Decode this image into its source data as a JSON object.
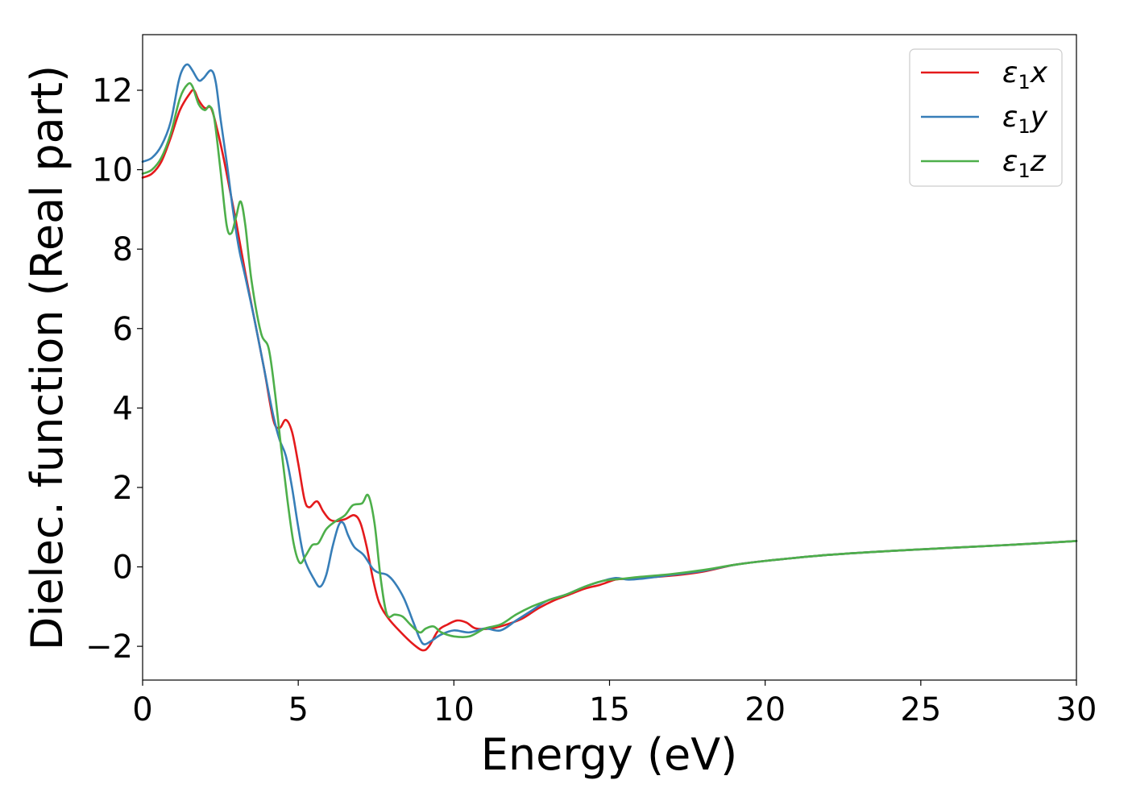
{
  "chart_data": {
    "type": "line",
    "title": "",
    "xlabel": "Energy (eV)",
    "ylabel": "Dielec. function (Real part)",
    "xlim": [
      0,
      30
    ],
    "ylim": [
      -2.85,
      13.4
    ],
    "xticks": [
      0,
      5,
      10,
      15,
      20,
      25,
      30
    ],
    "xtick_labels": [
      "0",
      "5",
      "10",
      "15",
      "20",
      "25",
      "30"
    ],
    "yticks": [
      -2,
      0,
      2,
      4,
      6,
      8,
      10,
      12
    ],
    "ytick_labels": [
      "−2",
      "0",
      "2",
      "4",
      "6",
      "8",
      "10",
      "12"
    ],
    "grid": false,
    "legend_position": "top-right",
    "series": [
      {
        "name": "ε₁x",
        "symbol": "ε",
        "subscript": "1",
        "component": "x",
        "color": "#e41a1c",
        "points": [
          [
            0,
            9.8
          ],
          [
            0.3,
            9.9
          ],
          [
            0.6,
            10.2
          ],
          [
            0.9,
            10.8
          ],
          [
            1.2,
            11.5
          ],
          [
            1.5,
            11.9
          ],
          [
            1.65,
            12.0
          ],
          [
            1.8,
            11.75
          ],
          [
            2.0,
            11.55
          ],
          [
            2.2,
            11.55
          ],
          [
            2.4,
            11.0
          ],
          [
            2.6,
            10.3
          ],
          [
            2.8,
            9.5
          ],
          [
            3.0,
            8.7
          ],
          [
            3.3,
            7.4
          ],
          [
            3.6,
            6.2
          ],
          [
            3.9,
            5.0
          ],
          [
            4.2,
            3.7
          ],
          [
            4.4,
            3.5
          ],
          [
            4.6,
            3.7
          ],
          [
            4.8,
            3.4
          ],
          [
            5.0,
            2.6
          ],
          [
            5.2,
            1.7
          ],
          [
            5.35,
            1.5
          ],
          [
            5.6,
            1.65
          ],
          [
            5.8,
            1.4
          ],
          [
            6.0,
            1.2
          ],
          [
            6.2,
            1.15
          ],
          [
            6.5,
            1.2
          ],
          [
            6.8,
            1.3
          ],
          [
            7.0,
            1.1
          ],
          [
            7.2,
            0.5
          ],
          [
            7.4,
            -0.3
          ],
          [
            7.6,
            -0.9
          ],
          [
            7.9,
            -1.3
          ],
          [
            8.3,
            -1.65
          ],
          [
            8.7,
            -1.95
          ],
          [
            9.0,
            -2.1
          ],
          [
            9.2,
            -2.0
          ],
          [
            9.5,
            -1.6
          ],
          [
            9.8,
            -1.45
          ],
          [
            10.1,
            -1.35
          ],
          [
            10.4,
            -1.4
          ],
          [
            10.7,
            -1.55
          ],
          [
            11.2,
            -1.55
          ],
          [
            11.7,
            -1.45
          ],
          [
            12.2,
            -1.3
          ],
          [
            12.7,
            -1.05
          ],
          [
            13.2,
            -0.85
          ],
          [
            13.7,
            -0.7
          ],
          [
            14.2,
            -0.55
          ],
          [
            14.7,
            -0.45
          ],
          [
            15.2,
            -0.32
          ],
          [
            15.6,
            -0.3
          ],
          [
            16.0,
            -0.28
          ],
          [
            17.0,
            -0.22
          ],
          [
            18.0,
            -0.12
          ],
          [
            19.0,
            0.05
          ],
          [
            20.0,
            0.15
          ],
          [
            22.0,
            0.3
          ],
          [
            24.0,
            0.4
          ],
          [
            26.0,
            0.48
          ],
          [
            28.0,
            0.56
          ],
          [
            30.0,
            0.65
          ]
        ]
      },
      {
        "name": "ε₁y",
        "symbol": "ε",
        "subscript": "1",
        "component": "y",
        "color": "#377eb8",
        "points": [
          [
            0,
            10.2
          ],
          [
            0.3,
            10.3
          ],
          [
            0.6,
            10.6
          ],
          [
            0.9,
            11.2
          ],
          [
            1.15,
            12.2
          ],
          [
            1.3,
            12.55
          ],
          [
            1.45,
            12.65
          ],
          [
            1.6,
            12.5
          ],
          [
            1.8,
            12.25
          ],
          [
            1.95,
            12.3
          ],
          [
            2.2,
            12.5
          ],
          [
            2.35,
            12.2
          ],
          [
            2.5,
            11.3
          ],
          [
            2.7,
            10.2
          ],
          [
            2.9,
            9.0
          ],
          [
            3.1,
            8.0
          ],
          [
            3.3,
            7.3
          ],
          [
            3.6,
            6.2
          ],
          [
            3.9,
            5.0
          ],
          [
            4.2,
            3.8
          ],
          [
            4.4,
            3.2
          ],
          [
            4.6,
            2.8
          ],
          [
            4.8,
            2.0
          ],
          [
            5.0,
            1.0
          ],
          [
            5.2,
            0.2
          ],
          [
            5.5,
            -0.3
          ],
          [
            5.7,
            -0.5
          ],
          [
            5.9,
            -0.2
          ],
          [
            6.1,
            0.5
          ],
          [
            6.3,
            1.05
          ],
          [
            6.45,
            1.1
          ],
          [
            6.6,
            0.8
          ],
          [
            6.8,
            0.5
          ],
          [
            7.1,
            0.3
          ],
          [
            7.4,
            -0.05
          ],
          [
            7.6,
            -0.15
          ],
          [
            7.85,
            -0.2
          ],
          [
            8.1,
            -0.4
          ],
          [
            8.4,
            -0.8
          ],
          [
            8.7,
            -1.4
          ],
          [
            8.9,
            -1.8
          ],
          [
            9.05,
            -1.95
          ],
          [
            9.3,
            -1.85
          ],
          [
            9.6,
            -1.7
          ],
          [
            10.0,
            -1.6
          ],
          [
            10.5,
            -1.65
          ],
          [
            11.0,
            -1.55
          ],
          [
            11.5,
            -1.6
          ],
          [
            12.0,
            -1.35
          ],
          [
            12.5,
            -1.1
          ],
          [
            13.0,
            -0.85
          ],
          [
            13.6,
            -0.7
          ],
          [
            14.2,
            -0.5
          ],
          [
            14.8,
            -0.35
          ],
          [
            15.2,
            -0.28
          ],
          [
            15.6,
            -0.32
          ],
          [
            16.0,
            -0.3
          ],
          [
            17.0,
            -0.2
          ],
          [
            18.0,
            -0.1
          ],
          [
            19.0,
            0.05
          ],
          [
            20.0,
            0.15
          ],
          [
            22.0,
            0.3
          ],
          [
            24.0,
            0.4
          ],
          [
            26.0,
            0.48
          ],
          [
            28.0,
            0.56
          ],
          [
            30.0,
            0.65
          ]
        ]
      },
      {
        "name": "ε₁z",
        "symbol": "ε",
        "subscript": "1",
        "component": "z",
        "color": "#4daf4a",
        "points": [
          [
            0,
            9.9
          ],
          [
            0.3,
            10.0
          ],
          [
            0.6,
            10.3
          ],
          [
            0.9,
            10.9
          ],
          [
            1.2,
            11.8
          ],
          [
            1.45,
            12.15
          ],
          [
            1.6,
            12.1
          ],
          [
            1.8,
            11.65
          ],
          [
            2.0,
            11.5
          ],
          [
            2.15,
            11.6
          ],
          [
            2.3,
            11.3
          ],
          [
            2.5,
            10.0
          ],
          [
            2.7,
            8.6
          ],
          [
            2.85,
            8.4
          ],
          [
            3.0,
            8.8
          ],
          [
            3.15,
            9.2
          ],
          [
            3.3,
            8.6
          ],
          [
            3.5,
            7.2
          ],
          [
            3.8,
            5.9
          ],
          [
            4.05,
            5.5
          ],
          [
            4.25,
            4.4
          ],
          [
            4.45,
            3.0
          ],
          [
            4.65,
            1.7
          ],
          [
            4.85,
            0.6
          ],
          [
            5.05,
            0.1
          ],
          [
            5.25,
            0.3
          ],
          [
            5.45,
            0.55
          ],
          [
            5.65,
            0.6
          ],
          [
            5.9,
            0.95
          ],
          [
            6.2,
            1.15
          ],
          [
            6.5,
            1.3
          ],
          [
            6.75,
            1.55
          ],
          [
            7.05,
            1.6
          ],
          [
            7.25,
            1.8
          ],
          [
            7.45,
            1.1
          ],
          [
            7.65,
            -0.3
          ],
          [
            7.85,
            -1.2
          ],
          [
            8.1,
            -1.2
          ],
          [
            8.35,
            -1.25
          ],
          [
            8.6,
            -1.45
          ],
          [
            8.9,
            -1.65
          ],
          [
            9.1,
            -1.55
          ],
          [
            9.35,
            -1.5
          ],
          [
            9.6,
            -1.65
          ],
          [
            10.0,
            -1.75
          ],
          [
            10.5,
            -1.75
          ],
          [
            11.0,
            -1.55
          ],
          [
            11.5,
            -1.45
          ],
          [
            12.0,
            -1.2
          ],
          [
            12.5,
            -1.0
          ],
          [
            13.0,
            -0.85
          ],
          [
            13.6,
            -0.7
          ],
          [
            14.2,
            -0.5
          ],
          [
            14.8,
            -0.35
          ],
          [
            15.4,
            -0.3
          ],
          [
            16.0,
            -0.25
          ],
          [
            17.0,
            -0.18
          ],
          [
            18.0,
            -0.08
          ],
          [
            19.0,
            0.05
          ],
          [
            20.0,
            0.15
          ],
          [
            22.0,
            0.3
          ],
          [
            24.0,
            0.4
          ],
          [
            26.0,
            0.48
          ],
          [
            28.0,
            0.56
          ],
          [
            30.0,
            0.65
          ]
        ]
      }
    ]
  }
}
